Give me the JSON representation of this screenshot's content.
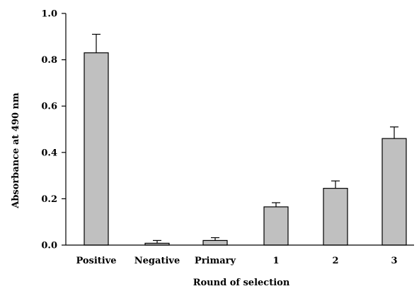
{
  "chart_data": {
    "type": "bar",
    "title": "",
    "xlabel": "Round of selection",
    "ylabel": "Absorbance at 490 nm",
    "categories": [
      "Positive",
      "Negative",
      "Primary",
      "1",
      "2",
      "3"
    ],
    "values": [
      0.83,
      0.008,
      0.02,
      0.165,
      0.245,
      0.46
    ],
    "errors": [
      0.08,
      0.012,
      0.012,
      0.018,
      0.032,
      0.05
    ],
    "ylim": [
      0,
      1.0
    ],
    "yticks": [
      0.0,
      0.2,
      0.4,
      0.6,
      0.8,
      1.0
    ],
    "ytick_labels": [
      "0.0",
      "0.2",
      "0.4",
      "0.6",
      "0.8",
      "1.0"
    ],
    "grid": false,
    "legend": "none",
    "bar_color": "#c0c0c0",
    "edge_color": "#000000"
  }
}
